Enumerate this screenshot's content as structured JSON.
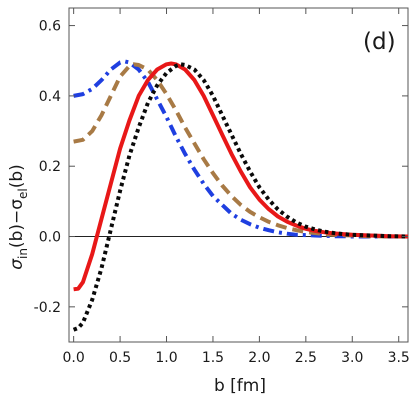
{
  "chart_data": {
    "type": "line",
    "title": "",
    "panel_label": "(d)",
    "xlabel": "b [fm]",
    "ylabel_main": "σ",
    "ylabel_sub1": "in",
    "ylabel_mid": "(b)−σ",
    "ylabel_sub2": "el",
    "ylabel_end": "(b)",
    "xlim": [
      -0.05,
      3.6
    ],
    "ylim": [
      -0.3,
      0.65
    ],
    "xticks": [
      0.0,
      0.5,
      1.0,
      1.5,
      2.0,
      2.5,
      3.0,
      3.5
    ],
    "xtick_labels": [
      "0.0",
      "0.5",
      "1.0",
      "1.5",
      "2.0",
      "2.5",
      "3.0",
      "3.5"
    ],
    "yticks": [
      -0.2,
      0.0,
      0.2,
      0.4,
      0.6
    ],
    "ytick_labels": [
      "-0.2",
      "0.0",
      "0.2",
      "0.4",
      "0.6"
    ],
    "zero_line": true,
    "grid": false,
    "series": [
      {
        "color": "#1f3fe0",
        "dash": "dashdot",
        "x": [
          0.0,
          0.1,
          0.2,
          0.3,
          0.4,
          0.5,
          0.55,
          0.6,
          0.7,
          0.8,
          0.9,
          1.0,
          1.1,
          1.2,
          1.3,
          1.4,
          1.5,
          1.6,
          1.7,
          1.8,
          1.9,
          2.0,
          2.1,
          2.2,
          2.3,
          2.4,
          2.5,
          2.6,
          2.7,
          2.8,
          2.9,
          3.0,
          3.2,
          3.4,
          3.6
        ],
        "y": [
          0.4,
          0.405,
          0.42,
          0.445,
          0.475,
          0.495,
          0.498,
          0.495,
          0.475,
          0.44,
          0.39,
          0.34,
          0.285,
          0.235,
          0.19,
          0.15,
          0.115,
          0.09,
          0.065,
          0.048,
          0.035,
          0.025,
          0.018,
          0.012,
          0.008,
          0.005,
          0.004,
          0.003,
          0.002,
          0.001,
          0.001,
          0.0,
          0.0,
          0.0,
          0.0
        ]
      },
      {
        "color": "#a87a45",
        "dash": "dashed",
        "x": [
          0.0,
          0.1,
          0.2,
          0.3,
          0.4,
          0.5,
          0.6,
          0.65,
          0.7,
          0.8,
          0.9,
          1.0,
          1.1,
          1.2,
          1.3,
          1.4,
          1.5,
          1.6,
          1.7,
          1.8,
          1.9,
          2.0,
          2.1,
          2.2,
          2.3,
          2.4,
          2.5,
          2.6,
          2.7,
          2.8,
          2.9,
          3.0,
          3.2,
          3.4,
          3.6
        ],
        "y": [
          0.27,
          0.275,
          0.3,
          0.345,
          0.4,
          0.455,
          0.485,
          0.49,
          0.488,
          0.475,
          0.445,
          0.405,
          0.36,
          0.31,
          0.265,
          0.22,
          0.18,
          0.145,
          0.115,
          0.09,
          0.07,
          0.055,
          0.042,
          0.032,
          0.024,
          0.018,
          0.013,
          0.01,
          0.007,
          0.005,
          0.004,
          0.003,
          0.001,
          0.0,
          0.0
        ]
      },
      {
        "color": "#e81818",
        "dash": "solid",
        "x": [
          0.0,
          0.05,
          0.1,
          0.2,
          0.3,
          0.4,
          0.5,
          0.6,
          0.7,
          0.8,
          0.9,
          1.0,
          1.05,
          1.1,
          1.2,
          1.3,
          1.4,
          1.5,
          1.6,
          1.7,
          1.8,
          1.9,
          2.0,
          2.1,
          2.2,
          2.3,
          2.4,
          2.5,
          2.6,
          2.7,
          2.8,
          2.9,
          3.0,
          3.2,
          3.4,
          3.6
        ],
        "y": [
          -0.15,
          -0.148,
          -0.13,
          -0.05,
          0.05,
          0.15,
          0.25,
          0.33,
          0.4,
          0.445,
          0.475,
          0.49,
          0.492,
          0.49,
          0.475,
          0.445,
          0.4,
          0.345,
          0.29,
          0.235,
          0.185,
          0.14,
          0.105,
          0.078,
          0.057,
          0.042,
          0.031,
          0.022,
          0.016,
          0.012,
          0.009,
          0.007,
          0.005,
          0.003,
          0.001,
          0.0
        ]
      },
      {
        "color": "#0a0a0a",
        "dash": "dotted",
        "x": [
          0.0,
          0.05,
          0.1,
          0.2,
          0.3,
          0.4,
          0.5,
          0.6,
          0.7,
          0.8,
          0.9,
          1.0,
          1.1,
          1.15,
          1.2,
          1.3,
          1.4,
          1.5,
          1.6,
          1.7,
          1.8,
          1.9,
          2.0,
          2.1,
          2.2,
          2.3,
          2.4,
          2.5,
          2.6,
          2.7,
          2.8,
          2.9,
          3.0,
          3.2,
          3.4,
          3.6
        ],
        "y": [
          -0.265,
          -0.26,
          -0.245,
          -0.18,
          -0.09,
          0.02,
          0.13,
          0.23,
          0.31,
          0.38,
          0.43,
          0.465,
          0.485,
          0.49,
          0.488,
          0.475,
          0.445,
          0.4,
          0.345,
          0.29,
          0.235,
          0.185,
          0.14,
          0.105,
          0.077,
          0.056,
          0.04,
          0.028,
          0.02,
          0.014,
          0.01,
          0.007,
          0.005,
          0.003,
          0.001,
          0.0
        ]
      }
    ]
  }
}
